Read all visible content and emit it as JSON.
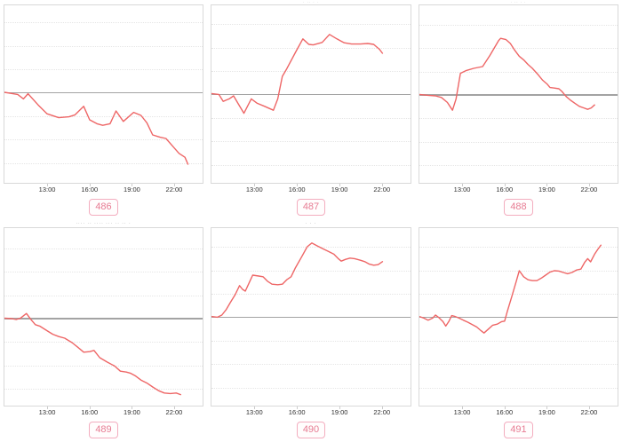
{
  "colors": {
    "line": "#ee6666",
    "zero_line": "#a3a3a3",
    "gridline": "#e5e5e5",
    "plot_border": "#d9d9d9",
    "axis_label": "#303030",
    "badge_border": "#f3adbf",
    "badge_text": "#e77c93",
    "title_text": "#9a9a9a"
  },
  "axis": {
    "tick_labels": [
      "13:00",
      "16:00",
      "19:00",
      "22:00"
    ],
    "tick_positions_pct": [
      21.8,
      43.0,
      64.2,
      85.3
    ]
  },
  "layout": {
    "gridline_offsets_pct": [
      -39.6,
      -26.4,
      -13.2,
      13.2,
      26.4,
      39.6
    ]
  },
  "chart_data": [
    {
      "type": "line",
      "badge": "486",
      "title": "",
      "title_clipped": true,
      "x_ticks": [
        "13:00",
        "16:00",
        "19:00",
        "22:00"
      ],
      "baseline_y_pct": 49.3,
      "points_pct": [
        [
          0,
          49
        ],
        [
          6.7,
          50.2
        ],
        [
          9.6,
          52.7
        ],
        [
          11.9,
          49.8
        ],
        [
          17,
          56.1
        ],
        [
          21.5,
          61.1
        ],
        [
          27.4,
          63.3
        ],
        [
          32.6,
          62.8
        ],
        [
          35.6,
          61.7
        ],
        [
          40,
          56.9
        ],
        [
          43,
          64.5
        ],
        [
          46.7,
          66.7
        ],
        [
          49.6,
          67.6
        ],
        [
          53.3,
          66.7
        ],
        [
          56.3,
          59.5
        ],
        [
          60,
          65.4
        ],
        [
          65.2,
          60.3
        ],
        [
          68.9,
          62
        ],
        [
          71.9,
          66.2
        ],
        [
          74.8,
          73
        ],
        [
          78.5,
          74.3
        ],
        [
          81.5,
          75
        ],
        [
          85.2,
          79.7
        ],
        [
          88.1,
          83.4
        ],
        [
          91.1,
          85.6
        ],
        [
          92.6,
          89.5
        ]
      ]
    },
    {
      "type": "line",
      "badge": "487",
      "title": "· ·· · ·",
      "title_clipped": true,
      "x_ticks": [
        "13:00",
        "16:00",
        "19:00",
        "22:00"
      ],
      "baseline_y_pct": 50.2,
      "points_pct": [
        [
          0,
          49.7
        ],
        [
          3.7,
          50.2
        ],
        [
          5.9,
          54.1
        ],
        [
          8.9,
          52.7
        ],
        [
          11.1,
          51
        ],
        [
          13.3,
          55.2
        ],
        [
          16.3,
          60.8
        ],
        [
          20,
          52.7
        ],
        [
          23,
          55.2
        ],
        [
          26.7,
          56.9
        ],
        [
          31.1,
          59.1
        ],
        [
          33.3,
          52.7
        ],
        [
          35.6,
          40
        ],
        [
          37.8,
          35.8
        ],
        [
          42.2,
          26.5
        ],
        [
          45.9,
          18.9
        ],
        [
          48.9,
          22
        ],
        [
          51.1,
          22.3
        ],
        [
          55.6,
          20.9
        ],
        [
          59.3,
          16.4
        ],
        [
          63,
          18.9
        ],
        [
          66.7,
          21.1
        ],
        [
          70.4,
          21.8
        ],
        [
          74.8,
          21.8
        ],
        [
          78.5,
          21.5
        ],
        [
          81.5,
          22
        ],
        [
          84.4,
          24.8
        ],
        [
          85.9,
          27
        ]
      ]
    },
    {
      "type": "line",
      "badge": "488",
      "title": "· ·· · ·",
      "title_clipped": true,
      "x_ticks": [
        "13:00",
        "16:00",
        "19:00",
        "22:00"
      ],
      "baseline_y_pct": 50.5,
      "points_pct": [
        [
          0,
          50.2
        ],
        [
          4.4,
          50.7
        ],
        [
          8.1,
          51
        ],
        [
          11.1,
          51.9
        ],
        [
          14.1,
          54.7
        ],
        [
          16.7,
          59.1
        ],
        [
          18.5,
          52.7
        ],
        [
          20.7,
          38.3
        ],
        [
          23.7,
          36.7
        ],
        [
          27.4,
          35.5
        ],
        [
          31.9,
          34.5
        ],
        [
          35.6,
          28.2
        ],
        [
          37.8,
          24
        ],
        [
          40,
          19.8
        ],
        [
          41,
          18.6
        ],
        [
          43.7,
          19.3
        ],
        [
          45.9,
          21.5
        ],
        [
          48.1,
          25.3
        ],
        [
          50.4,
          28.7
        ],
        [
          52.6,
          30.7
        ],
        [
          54.8,
          33.3
        ],
        [
          57,
          35.5
        ],
        [
          60,
          39.2
        ],
        [
          62.2,
          42.2
        ],
        [
          64.4,
          44.3
        ],
        [
          65.9,
          46.3
        ],
        [
          68.1,
          46.6
        ],
        [
          70.4,
          47
        ],
        [
          71.9,
          48.5
        ],
        [
          74.1,
          51.4
        ],
        [
          76.3,
          53.5
        ],
        [
          78.5,
          55.2
        ],
        [
          80.7,
          56.9
        ],
        [
          83,
          57.8
        ],
        [
          84.9,
          58.6
        ],
        [
          86.7,
          57.8
        ],
        [
          88.4,
          56.1
        ]
      ]
    },
    {
      "type": "line",
      "badge": "489",
      "title": "···· ·· ···· ··· ·· ·· ·",
      "title_clipped": false,
      "x_ticks": [
        "13:00",
        "16:00",
        "19:00",
        "22:00"
      ],
      "baseline_y_pct": 51,
      "points_pct": [
        [
          0,
          50.7
        ],
        [
          3.7,
          51
        ],
        [
          5.9,
          51.5
        ],
        [
          8.1,
          50.7
        ],
        [
          11.1,
          48.1
        ],
        [
          13.3,
          51.4
        ],
        [
          15.6,
          54.4
        ],
        [
          17.8,
          55.2
        ],
        [
          21.5,
          57.8
        ],
        [
          24.4,
          59.8
        ],
        [
          27.4,
          61.1
        ],
        [
          30.4,
          62
        ],
        [
          34.1,
          64.5
        ],
        [
          37,
          67.1
        ],
        [
          40,
          69.9
        ],
        [
          43,
          69.6
        ],
        [
          45.2,
          68.9
        ],
        [
          48.1,
          73
        ],
        [
          51.9,
          75.5
        ],
        [
          55.6,
          77.7
        ],
        [
          58.5,
          80.6
        ],
        [
          61.5,
          81.1
        ],
        [
          63.7,
          81.8
        ],
        [
          65.9,
          83.1
        ],
        [
          68.9,
          85.6
        ],
        [
          71.9,
          87.3
        ],
        [
          74.8,
          89.5
        ],
        [
          77.8,
          91.6
        ],
        [
          80.7,
          92.9
        ],
        [
          83.7,
          93.2
        ],
        [
          86.7,
          92.9
        ],
        [
          88.9,
          93.8
        ]
      ]
    },
    {
      "type": "line",
      "badge": "490",
      "title": "· · ·",
      "title_clipped": false,
      "x_ticks": [
        "13:00",
        "16:00",
        "19:00",
        "22:00"
      ],
      "baseline_y_pct": 50.2,
      "points_pct": [
        [
          0,
          49.8
        ],
        [
          3,
          50.2
        ],
        [
          5.2,
          49
        ],
        [
          7.4,
          45.9
        ],
        [
          9.6,
          41.7
        ],
        [
          11.9,
          37.5
        ],
        [
          14.1,
          32.4
        ],
        [
          15.6,
          34.5
        ],
        [
          17,
          35.5
        ],
        [
          19.3,
          29.9
        ],
        [
          20.7,
          26.5
        ],
        [
          23.7,
          27
        ],
        [
          25.9,
          27.4
        ],
        [
          28.1,
          29.9
        ],
        [
          30.4,
          31.6
        ],
        [
          33.3,
          31.9
        ],
        [
          35.6,
          31.6
        ],
        [
          37.8,
          29.1
        ],
        [
          40,
          27.4
        ],
        [
          42.2,
          22.3
        ],
        [
          45.2,
          16.4
        ],
        [
          48.1,
          10.5
        ],
        [
          50.4,
          8.4
        ],
        [
          53.3,
          10.1
        ],
        [
          56.3,
          11.8
        ],
        [
          58.5,
          13
        ],
        [
          61.5,
          14.7
        ],
        [
          63.7,
          17.2
        ],
        [
          65.2,
          18.6
        ],
        [
          67.4,
          17.6
        ],
        [
          69.6,
          16.9
        ],
        [
          71.9,
          17.2
        ],
        [
          74.8,
          18.1
        ],
        [
          77,
          18.9
        ],
        [
          79.3,
          20.3
        ],
        [
          81.5,
          20.9
        ],
        [
          83.7,
          20.6
        ],
        [
          85.9,
          18.9
        ]
      ]
    },
    {
      "type": "line",
      "badge": "491",
      "title": "",
      "title_clipped": false,
      "x_ticks": [
        "13:00",
        "16:00",
        "19:00",
        "22:00"
      ],
      "baseline_y_pct": 50.2,
      "points_pct": [
        [
          0,
          49.8
        ],
        [
          2.2,
          50.7
        ],
        [
          4.4,
          51.9
        ],
        [
          6.7,
          50.7
        ],
        [
          8.1,
          49
        ],
        [
          9.6,
          50.2
        ],
        [
          11.9,
          52.7
        ],
        [
          13.3,
          55.2
        ],
        [
          14.8,
          52.7
        ],
        [
          16.3,
          49.3
        ],
        [
          17.8,
          49.7
        ],
        [
          20,
          50.7
        ],
        [
          22.2,
          51.9
        ],
        [
          24.4,
          53
        ],
        [
          26.7,
          54.4
        ],
        [
          28.9,
          55.7
        ],
        [
          31.1,
          57.8
        ],
        [
          32.6,
          59.1
        ],
        [
          34.8,
          56.9
        ],
        [
          37,
          54.7
        ],
        [
          39.3,
          54.1
        ],
        [
          41.5,
          52.7
        ],
        [
          43,
          52.4
        ],
        [
          44.4,
          46.8
        ],
        [
          46.7,
          38.3
        ],
        [
          48.9,
          29.9
        ],
        [
          50.4,
          24
        ],
        [
          52.6,
          27.4
        ],
        [
          54.8,
          29.1
        ],
        [
          57,
          29.6
        ],
        [
          59.3,
          29.6
        ],
        [
          61.5,
          28.2
        ],
        [
          63.7,
          26.5
        ],
        [
          65.9,
          24.8
        ],
        [
          68.1,
          24
        ],
        [
          70.4,
          24.2
        ],
        [
          72.6,
          25
        ],
        [
          74.8,
          25.7
        ],
        [
          77,
          25
        ],
        [
          79.3,
          23.6
        ],
        [
          81.5,
          23.1
        ],
        [
          83.4,
          19.3
        ],
        [
          84.9,
          17.2
        ],
        [
          86.4,
          19
        ],
        [
          88.4,
          14.7
        ],
        [
          89.9,
          12.2
        ],
        [
          91.6,
          9.6
        ]
      ]
    }
  ]
}
